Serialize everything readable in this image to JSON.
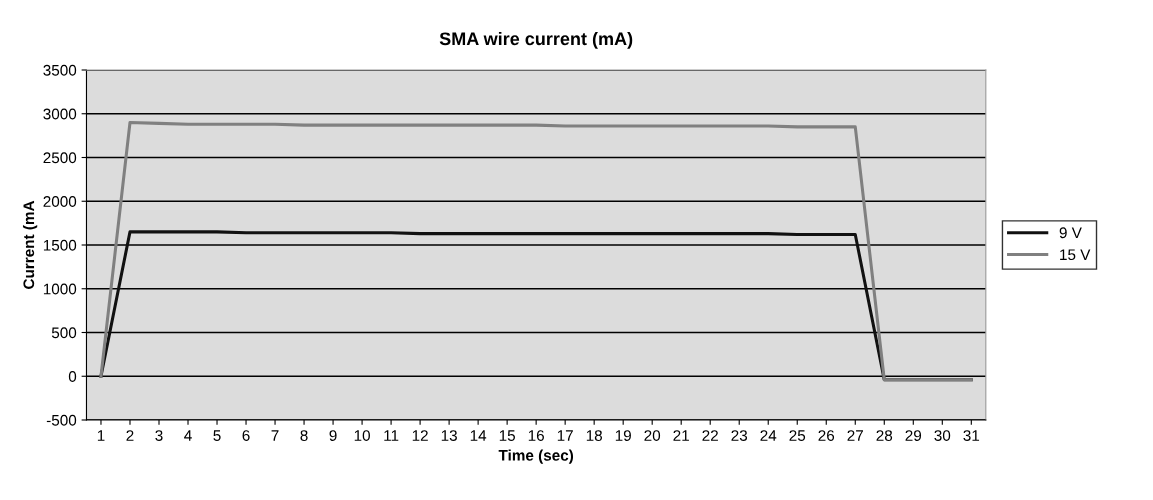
{
  "chart_data": {
    "type": "line",
    "title": "SMA wire current (mA)",
    "xlabel": "Time (sec)",
    "ylabel": "Current (mA",
    "categories": [
      "1",
      "2",
      "3",
      "4",
      "5",
      "6",
      "7",
      "8",
      "9",
      "10",
      "11",
      "12",
      "13",
      "14",
      "15",
      "16",
      "17",
      "18",
      "19",
      "20",
      "21",
      "22",
      "23",
      "24",
      "25",
      "26",
      "27",
      "28",
      "29",
      "30",
      "31"
    ],
    "series": [
      {
        "name": "9 V",
        "color": "#111111",
        "values": [
          0,
          1650,
          1650,
          1650,
          1650,
          1640,
          1640,
          1640,
          1640,
          1640,
          1640,
          1630,
          1630,
          1630,
          1630,
          1630,
          1630,
          1630,
          1630,
          1630,
          1630,
          1630,
          1630,
          1630,
          1620,
          1620,
          1620,
          -40,
          -40,
          -40,
          -40
        ]
      },
      {
        "name": "15 V",
        "color": "#808080",
        "values": [
          0,
          2900,
          2890,
          2880,
          2880,
          2880,
          2880,
          2870,
          2870,
          2870,
          2870,
          2870,
          2870,
          2870,
          2870,
          2870,
          2860,
          2860,
          2860,
          2860,
          2860,
          2860,
          2860,
          2860,
          2850,
          2850,
          2850,
          -40,
          -40,
          -40,
          -40
        ]
      }
    ],
    "ylim": [
      -500,
      3500
    ],
    "yticks": [
      -500,
      0,
      500,
      1000,
      1500,
      2000,
      2500,
      3000,
      3500
    ],
    "grid": "y",
    "legend": "right"
  }
}
